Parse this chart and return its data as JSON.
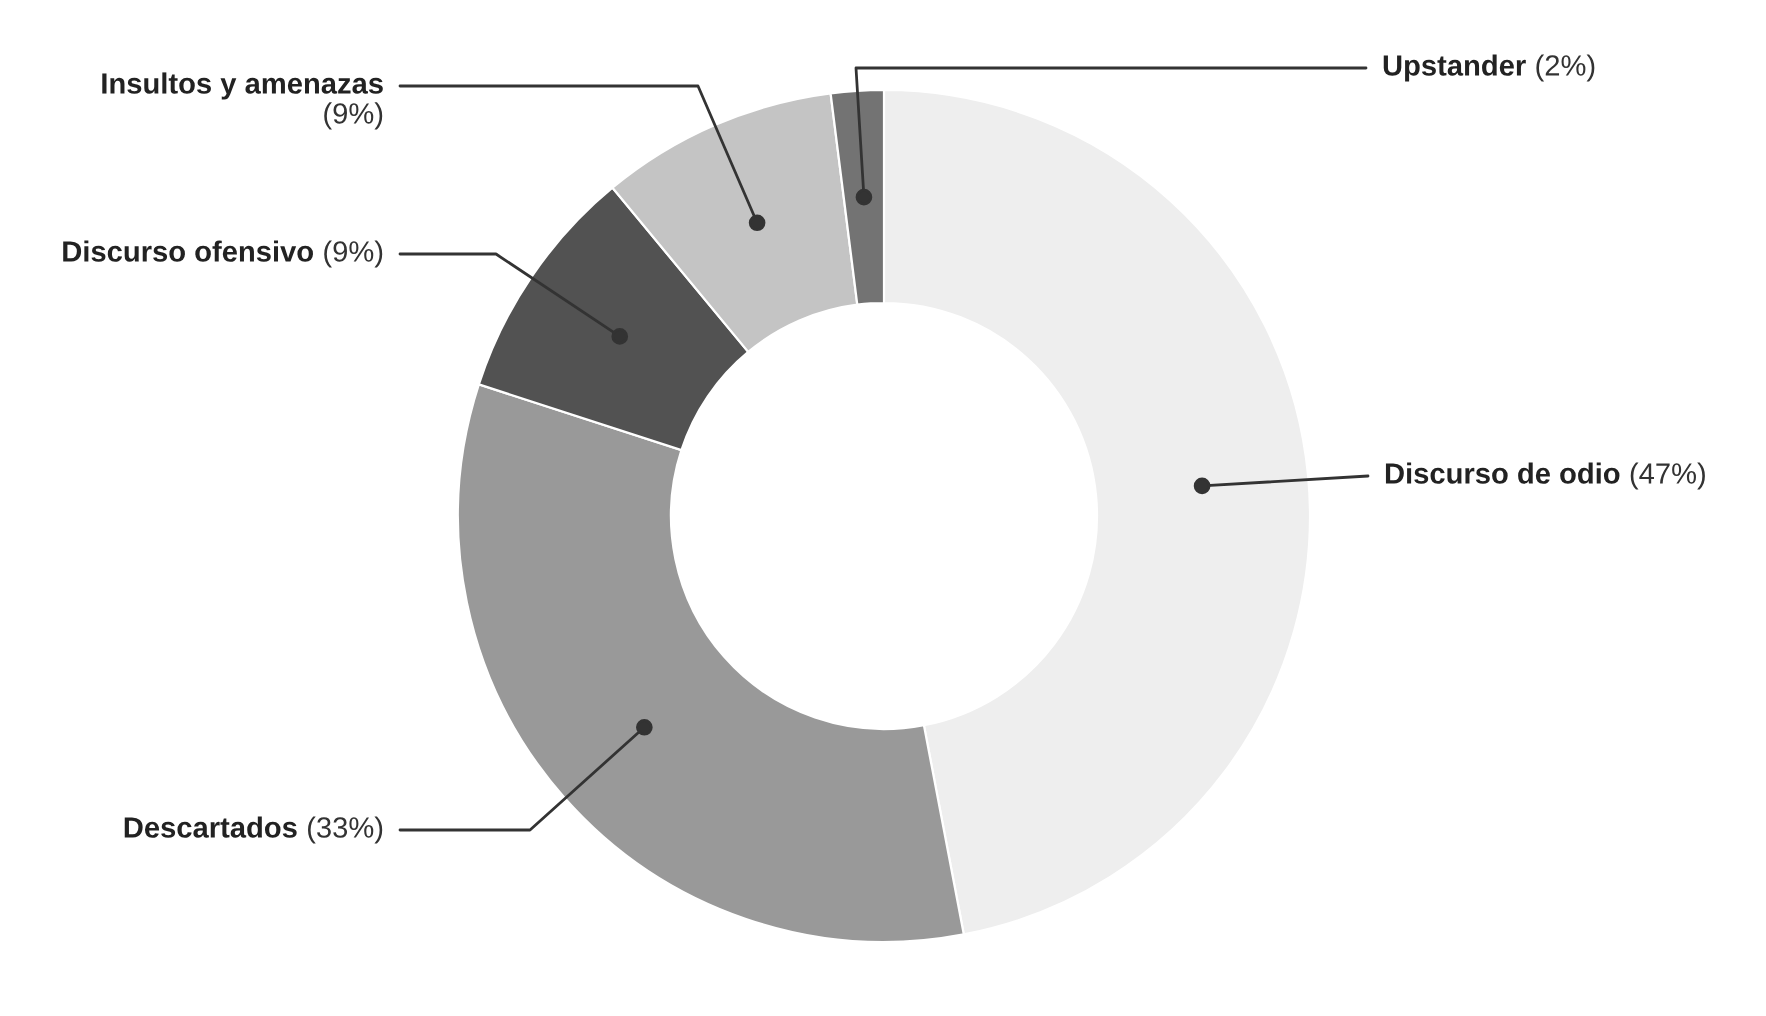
{
  "chart_data": {
    "type": "donut",
    "categories": [
      "Discurso de odio",
      "Descartados",
      "Discurso ofensivo",
      "Insultos y amenazas",
      "Upstander"
    ],
    "values": [
      47,
      33,
      9,
      9,
      2
    ],
    "colors": [
      "#eeeeee",
      "#999999",
      "#525252",
      "#c4c4c4",
      "#737373"
    ],
    "value_labels": [
      "(47%)",
      "(33%)",
      "(9%)",
      "(9%)",
      "(2%)"
    ]
  }
}
